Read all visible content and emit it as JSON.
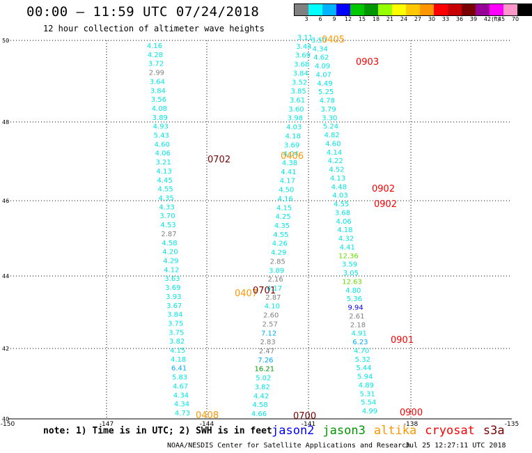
{
  "header": {
    "title": "00:00 – 11:59 UTC 07/24/2018",
    "subtitle": "12 hour collection of altimeter wave heights"
  },
  "legend": {
    "unit": "(ft)",
    "bins": [
      {
        "label": "3",
        "color": "#808080"
      },
      {
        "label": "6",
        "color": "#00ffff"
      },
      {
        "label": "9",
        "color": "#00b2ff"
      },
      {
        "label": "12",
        "color": "#0000ff"
      },
      {
        "label": "15",
        "color": "#00c800"
      },
      {
        "label": "18",
        "color": "#009600"
      },
      {
        "label": "21",
        "color": "#96ff00"
      },
      {
        "label": "24",
        "color": "#ffff00"
      },
      {
        "label": "27",
        "color": "#ffc800"
      },
      {
        "label": "30",
        "color": "#ff9600"
      },
      {
        "label": "33",
        "color": "#ff0000"
      },
      {
        "label": "36",
        "color": "#c80000"
      },
      {
        "label": "39",
        "color": "#780000"
      },
      {
        "label": "42",
        "color": "#960096"
      },
      {
        "label": "45",
        "color": "#ff00ff"
      },
      {
        "label": "70",
        "color": "#ff96c8"
      },
      {
        "label": "",
        "color": "#000000"
      }
    ]
  },
  "map": {
    "lat_ticks": [
      "50",
      "48",
      "46",
      "44",
      "42",
      "40"
    ],
    "lon_ticks": [
      "-150",
      "-147",
      "-144",
      "-141",
      "-138",
      "-135"
    ],
    "colors": {
      "gray": "#808080",
      "cyan": "#00e5e5",
      "lightblue": "#00aaff",
      "blue": "#0000ff",
      "green": "#009600",
      "lime": "#66dd00",
      "orange": "#ff9600",
      "red": "#ff0000",
      "maroon": "#780000"
    },
    "tracks": [
      {
        "name": "track-a",
        "values": [
          "4.16",
          "4.28",
          "3.72",
          "2.99",
          "3.64",
          "3.84",
          "3.56",
          "4.08",
          "3.89",
          "4.93",
          "5.43",
          "4.60",
          "4.06",
          "3.21",
          "4.13",
          "4.45",
          "4.55",
          "4.35",
          "4.33",
          "3.70",
          "4.53",
          "2.87",
          "4.58",
          "4.20",
          "4.29",
          "4.12",
          "3.63",
          "3.69",
          "3.93",
          "3.67",
          "3.84",
          "3.75",
          "3.75",
          "3.82",
          "4.15",
          "4.18",
          "6.41",
          "5.83",
          "4.67",
          "4.34",
          "4.34",
          "4.73"
        ],
        "colors": [
          "cyan",
          "cyan",
          "cyan",
          "gray",
          "cyan",
          "cyan",
          "cyan",
          "cyan",
          "cyan",
          "cyan",
          "cyan",
          "cyan",
          "cyan",
          "cyan",
          "cyan",
          "cyan",
          "cyan",
          "cyan",
          "cyan",
          "cyan",
          "cyan",
          "gray",
          "cyan",
          "cyan",
          "cyan",
          "cyan",
          "cyan",
          "cyan",
          "cyan",
          "cyan",
          "cyan",
          "cyan",
          "cyan",
          "cyan",
          "cyan",
          "cyan",
          "lightblue",
          "cyan",
          "cyan",
          "cyan",
          "cyan",
          "cyan"
        ]
      },
      {
        "name": "track-b",
        "values": [
          "3.11",
          "3.44",
          "3.69",
          "3.68",
          "3.84",
          "3.52",
          "3.85",
          "3.61",
          "3.60",
          "3.98",
          "4.03",
          "4.18",
          "3.69",
          "4.04",
          "4.38",
          "4.41",
          "4.17",
          "4.50",
          "4.16",
          "4.15",
          "4.25",
          "4.35",
          "4.55",
          "4.26",
          "4.29",
          "2.85",
          "3.89",
          "2.16",
          "4.17",
          "2.87",
          "4.10",
          "2.60",
          "2.57",
          "7.12",
          "2.83",
          "2.47",
          "7.26",
          "16.21",
          "5.02",
          "3.82",
          "4.42",
          "4.58",
          "4.66"
        ],
        "colors": [
          "cyan",
          "cyan",
          "cyan",
          "cyan",
          "cyan",
          "cyan",
          "cyan",
          "cyan",
          "cyan",
          "cyan",
          "cyan",
          "cyan",
          "cyan",
          "cyan",
          "cyan",
          "cyan",
          "cyan",
          "cyan",
          "cyan",
          "cyan",
          "cyan",
          "cyan",
          "cyan",
          "cyan",
          "cyan",
          "gray",
          "cyan",
          "gray",
          "cyan",
          "gray",
          "cyan",
          "gray",
          "gray",
          "lightblue",
          "gray",
          "gray",
          "lightblue",
          "green",
          "cyan",
          "cyan",
          "cyan",
          "cyan",
          "cyan"
        ]
      },
      {
        "name": "track-c",
        "values": [
          "3.50",
          "4.34",
          "4.62",
          "4.09",
          "4.07",
          "4.49",
          "5.25",
          "4.78",
          "3.79",
          "3.30",
          "5.24",
          "4.82",
          "4.60",
          "4.14",
          "4.22",
          "4.52",
          "4.13",
          "4.48",
          "4.03",
          "4.55",
          "3.68",
          "4.06",
          "4.18",
          "4.32",
          "4.41",
          "12.36",
          "3.59",
          "3.05",
          "12.63",
          "4.80",
          "5.36",
          "9.94",
          "2.61",
          "2.18",
          "4.91",
          "6.23",
          "4.70",
          "5.32",
          "5.44",
          "5.94",
          "4.89",
          "5.31",
          "5.54",
          "4.99"
        ],
        "colors": [
          "cyan",
          "cyan",
          "cyan",
          "cyan",
          "cyan",
          "cyan",
          "cyan",
          "cyan",
          "cyan",
          "cyan",
          "cyan",
          "cyan",
          "cyan",
          "cyan",
          "cyan",
          "cyan",
          "cyan",
          "cyan",
          "cyan",
          "cyan",
          "cyan",
          "cyan",
          "cyan",
          "cyan",
          "cyan",
          "lime",
          "cyan",
          "cyan",
          "lime",
          "cyan",
          "cyan",
          "blue",
          "gray",
          "gray",
          "cyan",
          "lightblue",
          "cyan",
          "cyan",
          "cyan",
          "cyan",
          "cyan",
          "cyan",
          "cyan",
          "cyan"
        ]
      }
    ],
    "time_labels": [
      {
        "text": "0405",
        "color": "orange"
      },
      {
        "text": "0903",
        "color": "red"
      },
      {
        "text": "0702",
        "color": "maroon"
      },
      {
        "text": "0406",
        "color": "orange"
      },
      {
        "text": "0902",
        "color": "red"
      },
      {
        "text": "0902",
        "color": "red"
      },
      {
        "text": "0407",
        "color": "orange"
      },
      {
        "text": "0701",
        "color": "maroon"
      },
      {
        "text": "0901",
        "color": "red"
      },
      {
        "text": "0408",
        "color": "orange"
      },
      {
        "text": "0700",
        "color": "maroon"
      },
      {
        "text": "0900",
        "color": "red"
      }
    ]
  },
  "footer": {
    "note": "note: 1) Time is in UTC; 2) SWH is in feet",
    "satellites": [
      {
        "name": "jason2",
        "color": "#0000ff"
      },
      {
        "name": "jason3",
        "color": "#009600"
      },
      {
        "name": "altika",
        "color": "#ff9600"
      },
      {
        "name": "cryosat",
        "color": "#ff0000"
      },
      {
        "name": "s3a",
        "color": "#780000"
      }
    ],
    "credit": "NOAA/NESDIS Center for Satellite Applications and Research",
    "timestamp": "Jul 25 12:27:11 UTC 2018"
  }
}
